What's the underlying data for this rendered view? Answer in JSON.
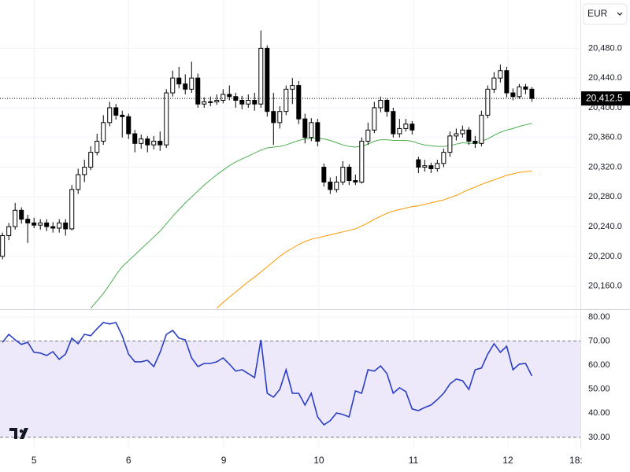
{
  "currency": "EUR",
  "chart_data": [
    {
      "type": "candlestick",
      "open": [
        20200,
        20228,
        20240,
        20262,
        20250,
        20245,
        20242,
        20245,
        20240,
        20238,
        20245,
        20237,
        20290,
        20310,
        20320,
        20340,
        20355,
        20380,
        20400,
        20390,
        20388,
        20365,
        20352,
        20358,
        20350,
        20355,
        20350,
        20420,
        20440,
        20432,
        20425,
        20440,
        20405,
        20408,
        20408,
        20410,
        20418,
        20415,
        20410,
        20405,
        20410,
        20405,
        20480,
        20395,
        20380,
        20395,
        20425,
        20430,
        20385,
        20360,
        20380,
        20320,
        20300,
        20290,
        20300,
        20320,
        20302,
        20300,
        20355,
        20370,
        20400,
        20410,
        20395,
        20365,
        20372,
        20378,
        20330,
        20320,
        20322,
        20318,
        20325,
        20340,
        20362,
        20365,
        20370,
        20355,
        20352,
        20390,
        20425,
        20440,
        20450,
        20420,
        20415,
        20428,
        20425
      ],
      "high": [
        20232,
        20245,
        20272,
        20266,
        20256,
        20252,
        20250,
        20250,
        20246,
        20250,
        20250,
        20296,
        20318,
        20330,
        20348,
        20365,
        20390,
        20408,
        20405,
        20396,
        20392,
        20370,
        20364,
        20362,
        20362,
        20368,
        20425,
        20450,
        20455,
        20445,
        20462,
        20446,
        20414,
        20415,
        20418,
        20425,
        20430,
        20420,
        20416,
        20418,
        20420,
        20504,
        20484,
        20420,
        20402,
        20430,
        20440,
        20436,
        20392,
        20386,
        20385,
        20325,
        20306,
        20308,
        20328,
        20324,
        20310,
        20360,
        20380,
        20408,
        20415,
        20412,
        20400,
        20385,
        20385,
        20382,
        20334,
        20330,
        20326,
        20330,
        20345,
        20368,
        20372,
        20376,
        20374,
        20362,
        20396,
        20430,
        20448,
        20458,
        20455,
        20426,
        20432,
        20432,
        20428
      ],
      "low": [
        20196,
        20222,
        20236,
        20244,
        20218,
        20238,
        20236,
        20234,
        20232,
        20232,
        20228,
        20235,
        20284,
        20300,
        20316,
        20336,
        20350,
        20375,
        20384,
        20360,
        20358,
        20340,
        20345,
        20340,
        20344,
        20342,
        20346,
        20415,
        20426,
        20418,
        20420,
        20400,
        20400,
        20402,
        20404,
        20406,
        20410,
        20400,
        20398,
        20400,
        20396,
        20400,
        20388,
        20350,
        20372,
        20390,
        20405,
        20378,
        20352,
        20355,
        20348,
        20294,
        20284,
        20286,
        20296,
        20296,
        20296,
        20298,
        20350,
        20366,
        20394,
        20388,
        20360,
        20360,
        20368,
        20364,
        20312,
        20314,
        20312,
        20314,
        20320,
        20334,
        20356,
        20360,
        20350,
        20346,
        20348,
        20386,
        20420,
        20434,
        20414,
        20410,
        20412,
        20418,
        20408
      ],
      "close": [
        20228,
        20240,
        20262,
        20250,
        20245,
        20242,
        20245,
        20240,
        20238,
        20245,
        20237,
        20290,
        20310,
        20320,
        20340,
        20355,
        20380,
        20400,
        20390,
        20388,
        20365,
        20352,
        20358,
        20350,
        20355,
        20350,
        20420,
        20440,
        20432,
        20425,
        20440,
        20405,
        20408,
        20408,
        20410,
        20418,
        20415,
        20410,
        20405,
        20410,
        20405,
        20480,
        20395,
        20380,
        20395,
        20425,
        20430,
        20385,
        20360,
        20380,
        20355,
        20300,
        20290,
        20300,
        20320,
        20302,
        20300,
        20355,
        20370,
        20400,
        20410,
        20395,
        20365,
        20372,
        20378,
        20370,
        20320,
        20322,
        20318,
        20325,
        20340,
        20362,
        20365,
        20370,
        20355,
        20352,
        20390,
        20425,
        20440,
        20450,
        20420,
        20415,
        20428,
        20425,
        20412.5
      ],
      "up_color": "#ffffff",
      "down_color": "#000000",
      "lines": [
        {
          "color": "#4caf50",
          "values": [
            null,
            null,
            null,
            null,
            null,
            null,
            null,
            null,
            null,
            null,
            null,
            null,
            null,
            null,
            20130,
            20140,
            20150,
            20162,
            20175,
            20186,
            20194,
            20202,
            20210,
            20218,
            20226,
            20234,
            20244,
            20254,
            20263,
            20272,
            20280,
            20288,
            20296,
            20303,
            20310,
            20316,
            20322,
            20327,
            20331,
            20335,
            20339,
            20343,
            20346,
            20347,
            20348,
            20350,
            20353,
            20356,
            20358,
            20359,
            20359,
            20358,
            20356,
            20353,
            20350,
            20348,
            20347,
            20348,
            20351,
            20355,
            20357,
            20357,
            20356,
            20356,
            20356,
            20355,
            20352,
            20350,
            20349,
            20348,
            20348,
            20349,
            20351,
            20353,
            20352,
            20352,
            20355,
            20358,
            20363,
            20367,
            20370,
            20372,
            20375,
            20377,
            20379
          ]
        },
        {
          "color": "#ff9800",
          "values": [
            null,
            null,
            null,
            null,
            null,
            null,
            null,
            null,
            null,
            null,
            null,
            null,
            null,
            null,
            null,
            null,
            null,
            null,
            null,
            null,
            null,
            null,
            null,
            null,
            null,
            null,
            null,
            null,
            null,
            null,
            null,
            null,
            null,
            null,
            20130,
            20138,
            20145,
            20152,
            20159,
            20166,
            20172,
            20179,
            20186,
            20193,
            20200,
            20206,
            20211,
            20216,
            20220,
            20223,
            20225,
            20227,
            20229,
            20231,
            20233,
            20235,
            20237,
            20241,
            20245,
            20250,
            20254,
            20258,
            20261,
            20263,
            20265,
            20267,
            20268,
            20270,
            20272,
            20274,
            20276,
            20279,
            20282,
            20286,
            20290,
            20293,
            20297,
            20300,
            20303,
            20306,
            20309,
            20311,
            20313,
            20314,
            20315
          ]
        }
      ],
      "last_price": {
        "value": 20412.5,
        "label": "20,412.5"
      },
      "xlim": [
        -0.4,
        91.7
      ],
      "ylim": [
        20130,
        20545
      ],
      "yticks": [
        {
          "value": 20160,
          "label": "20,160.0"
        },
        {
          "value": 20200,
          "label": "20,200.0"
        },
        {
          "value": 20240,
          "label": "20,240.0"
        },
        {
          "value": 20280,
          "label": "20,280.0"
        },
        {
          "value": 20320,
          "label": "20,320.0"
        },
        {
          "value": 20360,
          "label": "20,360.0"
        },
        {
          "value": 20400,
          "label": "20,400.0"
        },
        {
          "value": 20440,
          "label": "20,440.0"
        },
        {
          "value": 20480,
          "label": "20,480.0"
        }
      ],
      "grid": true
    },
    {
      "type": "line",
      "series": [
        {
          "color": "#2a3fc4",
          "values": [
            69.5,
            72.8,
            70.5,
            68.6,
            69.5,
            65.3,
            65.0,
            64.0,
            65.6,
            62.4,
            64.6,
            71.2,
            68.9,
            72.8,
            72.2,
            75.1,
            77.7,
            77.1,
            77.7,
            72.2,
            64.6,
            61.4,
            61.4,
            62.0,
            59.4,
            65.3,
            72.8,
            74.4,
            71.2,
            70.5,
            63.0,
            59.4,
            60.7,
            60.7,
            61.4,
            63.0,
            60.4,
            57.5,
            58.1,
            56.5,
            54.8,
            70.5,
            48.3,
            46.7,
            49.9,
            58.1,
            48.3,
            48.3,
            43.4,
            48.3,
            38.5,
            35.2,
            36.9,
            40.1,
            39.5,
            38.5,
            49.3,
            48.3,
            58.1,
            57.5,
            59.7,
            56.5,
            48.3,
            50.6,
            49.0,
            41.8,
            41.1,
            42.4,
            43.4,
            45.7,
            48.3,
            52.2,
            54.2,
            53.5,
            49.9,
            58.1,
            58.8,
            64.6,
            68.9,
            65.3,
            67.9,
            58.1,
            60.4,
            60.7,
            55.5
          ]
        }
      ],
      "xlim": [
        -0.4,
        91.7
      ],
      "xticks": [
        {
          "value": 5,
          "label": "5"
        },
        {
          "value": 20,
          "label": "6"
        },
        {
          "value": 35.1,
          "label": "9"
        },
        {
          "value": 50.2,
          "label": "10"
        },
        {
          "value": 65.2,
          "label": "11"
        },
        {
          "value": 80.2,
          "label": "12"
        },
        {
          "value": 91,
          "label": "18:"
        }
      ],
      "ylim": [
        25.4,
        82.6
      ],
      "yticks": [
        {
          "value": 30,
          "label": "30.00"
        },
        {
          "value": 40,
          "label": "40.00"
        },
        {
          "value": 50,
          "label": "50.00"
        },
        {
          "value": 60,
          "label": "60.00"
        },
        {
          "value": 70,
          "label": "70.00"
        },
        {
          "value": 80,
          "label": "80.00"
        }
      ],
      "band": [
        30,
        70
      ],
      "band_color": "#ede9fb",
      "grid": true
    }
  ]
}
